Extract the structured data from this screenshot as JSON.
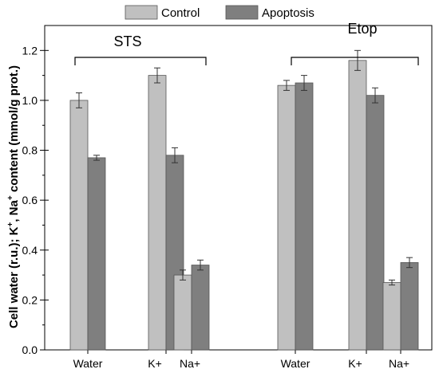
{
  "chart_data": {
    "type": "bar",
    "ylabel_parts": [
      "Cell water (r.u.); K",
      "+",
      ", Na",
      "+",
      " content (mmol/g prot.)"
    ],
    "ylim": [
      0,
      1.3
    ],
    "yticks": [
      0.0,
      0.2,
      0.4,
      0.6,
      0.8,
      1.0,
      1.2
    ],
    "ytick_labels": [
      "0.0",
      "0.2",
      "0.4",
      "0.6",
      "0.8",
      "1.0",
      "1.2"
    ],
    "legend": {
      "placement": "top-center",
      "entries": [
        "Control",
        "Apoptosis"
      ]
    },
    "series_colors": [
      "#c0c0c0",
      "#7f7f7f"
    ],
    "groups": [
      {
        "label": "STS",
        "categories": [
          "Water",
          "K+",
          "Na+"
        ],
        "series": [
          {
            "name": "Control",
            "values": [
              1.0,
              1.1,
              0.3
            ],
            "errors": [
              0.03,
              0.03,
              0.02
            ]
          },
          {
            "name": "Apoptosis",
            "values": [
              0.77,
              0.78,
              0.34
            ],
            "errors": [
              0.01,
              0.03,
              0.02
            ]
          }
        ]
      },
      {
        "label": "Etop",
        "categories": [
          "Water",
          "K+",
          "Na+"
        ],
        "series": [
          {
            "name": "Control",
            "values": [
              1.06,
              1.16,
              0.27
            ],
            "errors": [
              0.02,
              0.04,
              0.01
            ]
          },
          {
            "name": "Apoptosis",
            "values": [
              1.07,
              1.02,
              0.35
            ],
            "errors": [
              0.03,
              0.03,
              0.02
            ]
          }
        ]
      }
    ]
  }
}
